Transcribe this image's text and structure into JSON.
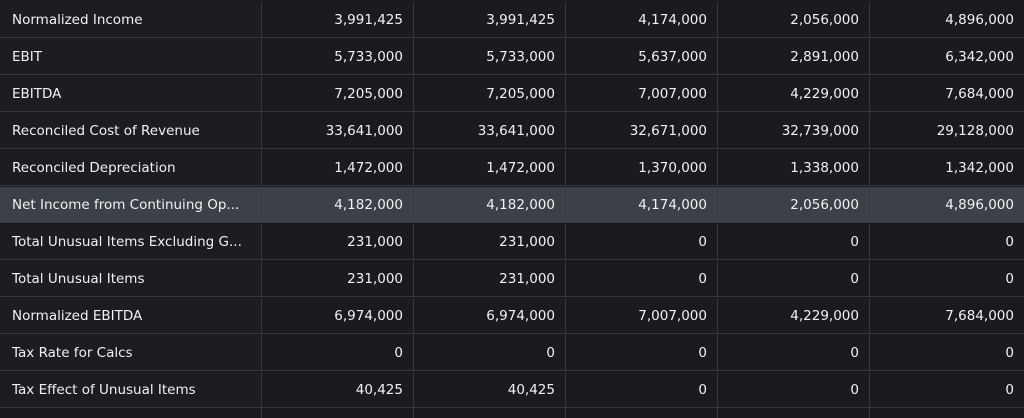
{
  "table": {
    "rows": [
      {
        "label": "Normalized Income",
        "values": [
          "3,991,425",
          "3,991,425",
          "4,174,000",
          "2,056,000",
          "4,896,000"
        ]
      },
      {
        "label": "EBIT",
        "values": [
          "5,733,000",
          "5,733,000",
          "5,637,000",
          "2,891,000",
          "6,342,000"
        ]
      },
      {
        "label": "EBITDA",
        "values": [
          "7,205,000",
          "7,205,000",
          "7,007,000",
          "4,229,000",
          "7,684,000"
        ]
      },
      {
        "label": "Reconciled Cost of Revenue",
        "values": [
          "33,641,000",
          "33,641,000",
          "32,671,000",
          "32,739,000",
          "29,128,000"
        ]
      },
      {
        "label": "Reconciled Depreciation",
        "values": [
          "1,472,000",
          "1,472,000",
          "1,370,000",
          "1,338,000",
          "1,342,000"
        ]
      },
      {
        "label": "Net Income from Continuing Op...",
        "values": [
          "4,182,000",
          "4,182,000",
          "4,174,000",
          "2,056,000",
          "4,896,000"
        ]
      },
      {
        "label": "Total Unusual Items Excluding G...",
        "values": [
          "231,000",
          "231,000",
          "0",
          "0",
          "0"
        ]
      },
      {
        "label": "Total Unusual Items",
        "values": [
          "231,000",
          "231,000",
          "0",
          "0",
          "0"
        ]
      },
      {
        "label": "Normalized EBITDA",
        "values": [
          "6,974,000",
          "6,974,000",
          "7,007,000",
          "4,229,000",
          "7,684,000"
        ]
      },
      {
        "label": "Tax Rate for Calcs",
        "values": [
          "0",
          "0",
          "0",
          "0",
          "0"
        ]
      },
      {
        "label": "Tax Effect of Unusual Items",
        "values": [
          "40,425",
          "40,425",
          "0",
          "0",
          "0"
        ]
      }
    ],
    "highlighted_row_label": "Net Income from Continuing Op..."
  },
  "colors": {
    "background": "#1a1b1e",
    "highlight": "#3b4147",
    "grid": "#34373c",
    "text": "#f1f1f1"
  }
}
